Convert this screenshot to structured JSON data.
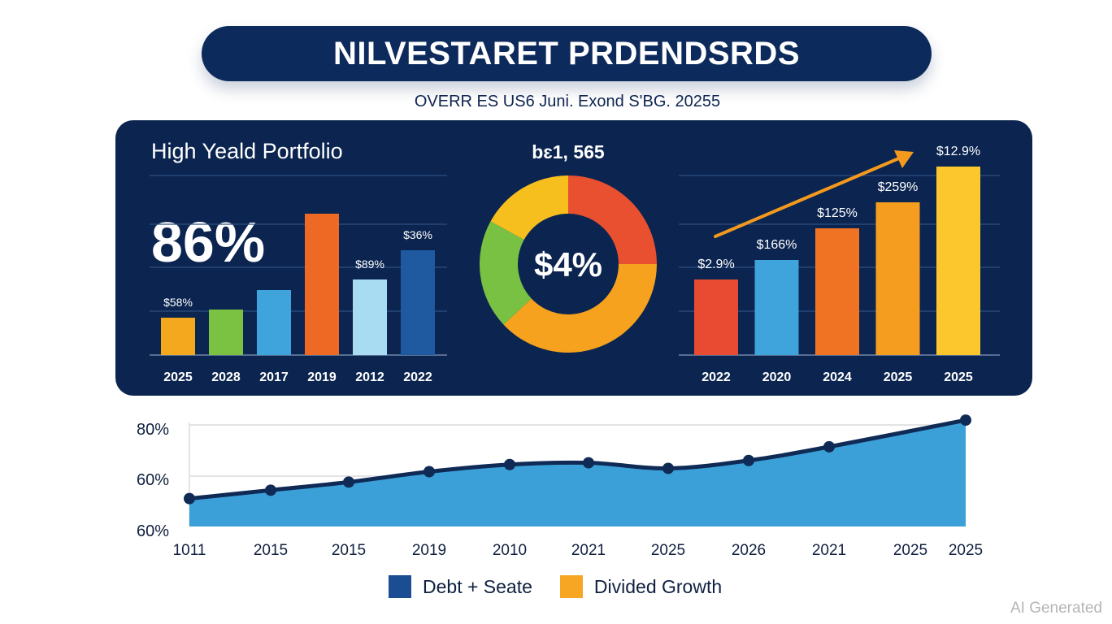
{
  "header": {
    "title": "NILVESTARET PRDENDSRDS",
    "subtitle": "OVERR ES US6 Juni. Exond S'BG. 20255"
  },
  "watermark": "AI Generated",
  "colors": {
    "navy": "#0b2550",
    "title_navy": "#0d2a5c",
    "line_navy": "#0f2a55",
    "area_blue": "#3ba0d8",
    "arrow_orange": "#f39a1e"
  },
  "chart_data": [
    {
      "type": "bar",
      "title": "High Yeald Portfolio",
      "headline": "86%",
      "categories": [
        "2025",
        "2028",
        "2017",
        "2019",
        "2012",
        "2022"
      ],
      "values": [
        46,
        56,
        80,
        174,
        93,
        129
      ],
      "ylim": [
        0,
        221
      ],
      "grid": true,
      "colors": [
        "#f4a81d",
        "#7cc242",
        "#3fa3dc",
        "#ee6a24",
        "#a8dcf2",
        "#1f5aa0"
      ],
      "data_labels": [
        "$58%",
        "",
        "",
        "",
        "$89%",
        "$36%"
      ]
    },
    {
      "type": "pie",
      "title": "bɛ1, 565",
      "center_label": "$4%",
      "donut": true,
      "slices": [
        {
          "label": "Red",
          "value": 25,
          "color": "#e8502f"
        },
        {
          "label": "Orange",
          "value": 38,
          "color": "#f6a21e"
        },
        {
          "label": "Green",
          "value": 20,
          "color": "#79c143"
        },
        {
          "label": "Yellow",
          "value": 17,
          "color": "#f7bf1e"
        }
      ]
    },
    {
      "type": "bar",
      "categories": [
        "2022",
        "2020",
        "2024",
        "2025",
        "2025"
      ],
      "values": [
        93,
        117,
        156,
        188,
        232
      ],
      "ylim": [
        0,
        221
      ],
      "grid": true,
      "colors": [
        "#e84a32",
        "#3fa3dc",
        "#ef7322",
        "#f59d1f",
        "#fbc72c"
      ],
      "data_labels": [
        "$2.9%",
        "$166%",
        "$125%",
        "$259%",
        "$12.9%"
      ],
      "annotation": "upward trend arrow"
    },
    {
      "type": "area",
      "x": [
        "1011",
        "2015",
        "2015",
        "2019",
        "2010",
        "2021",
        "2025",
        "2026",
        "2021",
        "2025",
        "2025"
      ],
      "values": [
        51,
        54.3,
        57.5,
        61.6,
        64.4,
        65.1,
        62.9,
        66,
        71.4,
        null,
        81.9
      ],
      "point_x_positions_index": [
        0,
        1,
        2,
        3,
        4,
        5,
        6,
        7,
        8,
        10
      ],
      "yticks": [
        "80%",
        "60%",
        "60%"
      ],
      "ylim": [
        40,
        80
      ],
      "grid": true,
      "legend": [
        {
          "label": "Debt + Seate",
          "color": "#1a4d92"
        },
        {
          "label": "Divided Growth",
          "color": "#f6a623"
        }
      ],
      "legend_position": "bottom-center"
    }
  ]
}
